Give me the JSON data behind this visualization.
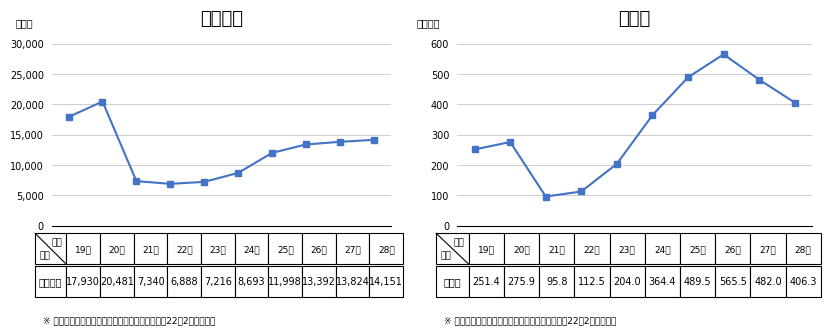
{
  "years": [
    "19年",
    "20年",
    "21年",
    "22年",
    "23年",
    "24年",
    "25年",
    "26年",
    "27年",
    "28年"
  ],
  "cases_values": [
    17930,
    20481,
    7340,
    6888,
    7216,
    8693,
    11998,
    13392,
    13824,
    14151
  ],
  "damage_values": [
    251.4,
    275.9,
    95.8,
    112.5,
    204.0,
    364.4,
    489.5,
    565.5,
    482.0,
    406.3
  ],
  "cases_title": "認知件数",
  "damage_title": "被害額",
  "cases_ylabel": "（件）",
  "damage_ylabel": "（億円）",
  "cases_ylim": [
    0,
    32000
  ],
  "damage_ylim": [
    0,
    640
  ],
  "cases_yticks": [
    0,
    5000,
    10000,
    15000,
    20000,
    25000,
    30000
  ],
  "damage_yticks": [
    0,
    100,
    200,
    300,
    400,
    500,
    600
  ],
  "cases_row_label": "認知件数",
  "damage_row_label": "被害額",
  "note": "※ 振り込め詐欺以外の特殊詐欺については、平成22年2月から集計",
  "line_color": "#4472C4",
  "marker": "s",
  "marker_size": 4,
  "bg_color": "#FFFFFF",
  "grid_color": "#BBBBBB",
  "title_fontsize": 13,
  "axis_label_fontsize": 7,
  "tick_fontsize": 7,
  "table_header_fontsize": 6.5,
  "table_data_fontsize": 7,
  "note_fontsize": 6.5
}
